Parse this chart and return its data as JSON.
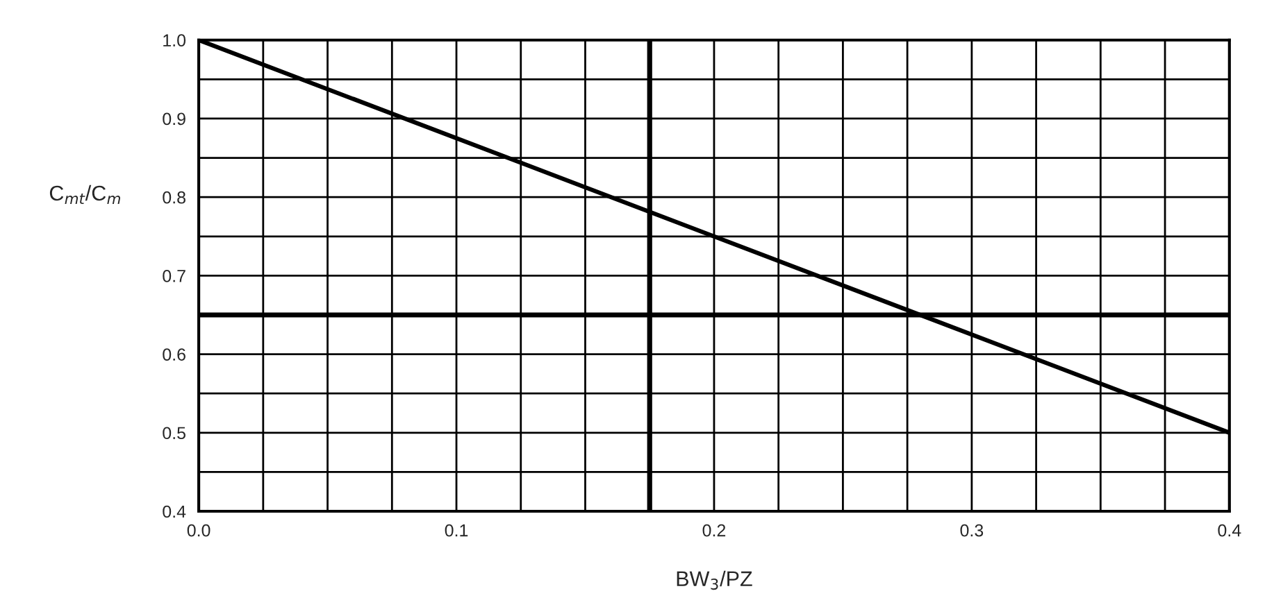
{
  "chart_data": {
    "type": "line",
    "xlabel": "BW$_{3}$/PZ",
    "ylabel": "C$_{mt}$/C$_{m}$",
    "x": [
      0.0,
      0.4
    ],
    "series": [
      {
        "color": "#000000",
        "values": [
          1.0,
          0.5
        ]
      }
    ],
    "xlim": [
      0.0,
      0.4
    ],
    "ylim": [
      0.4,
      1.0
    ],
    "xticks": [
      {
        "value": 0.0,
        "label": "0.0"
      },
      {
        "value": 0.025,
        "label": null
      },
      {
        "value": 0.05,
        "label": null
      },
      {
        "value": 0.075,
        "label": null
      },
      {
        "value": 0.1,
        "label": "0.1"
      },
      {
        "value": 0.125,
        "label": null
      },
      {
        "value": 0.15,
        "label": null
      },
      {
        "value": 0.2,
        "label": "0.2"
      },
      {
        "value": 0.225,
        "label": null
      },
      {
        "value": 0.25,
        "label": null
      },
      {
        "value": 0.275,
        "label": null
      },
      {
        "value": 0.3,
        "label": "0.3"
      },
      {
        "value": 0.325,
        "label": null
      },
      {
        "value": 0.35,
        "label": null
      },
      {
        "value": 0.375,
        "label": null
      },
      {
        "value": 0.4,
        "label": "0.4"
      }
    ],
    "yticks": [
      {
        "value": 0.4,
        "label": "0.4"
      },
      {
        "value": 0.45,
        "label": null
      },
      {
        "value": 0.5,
        "label": "0.5"
      },
      {
        "value": 0.55,
        "label": null
      },
      {
        "value": 0.6,
        "label": "0.6"
      },
      {
        "value": 0.7,
        "label": "0.7"
      },
      {
        "value": 0.75,
        "label": null
      },
      {
        "value": 0.8,
        "label": "0.8"
      },
      {
        "value": 0.85,
        "label": null
      },
      {
        "value": 0.9,
        "label": "0.9"
      },
      {
        "value": 0.95,
        "label": null
      },
      {
        "value": 1.0,
        "label": "1.0"
      }
    ],
    "grid": true,
    "marker": "none",
    "line_style": "solid",
    "ref_lines": [
      {
        "axis": "x",
        "value": 0.175,
        "color": "#000000"
      },
      {
        "axis": "y",
        "value": 0.65,
        "color": "#000000"
      }
    ]
  }
}
